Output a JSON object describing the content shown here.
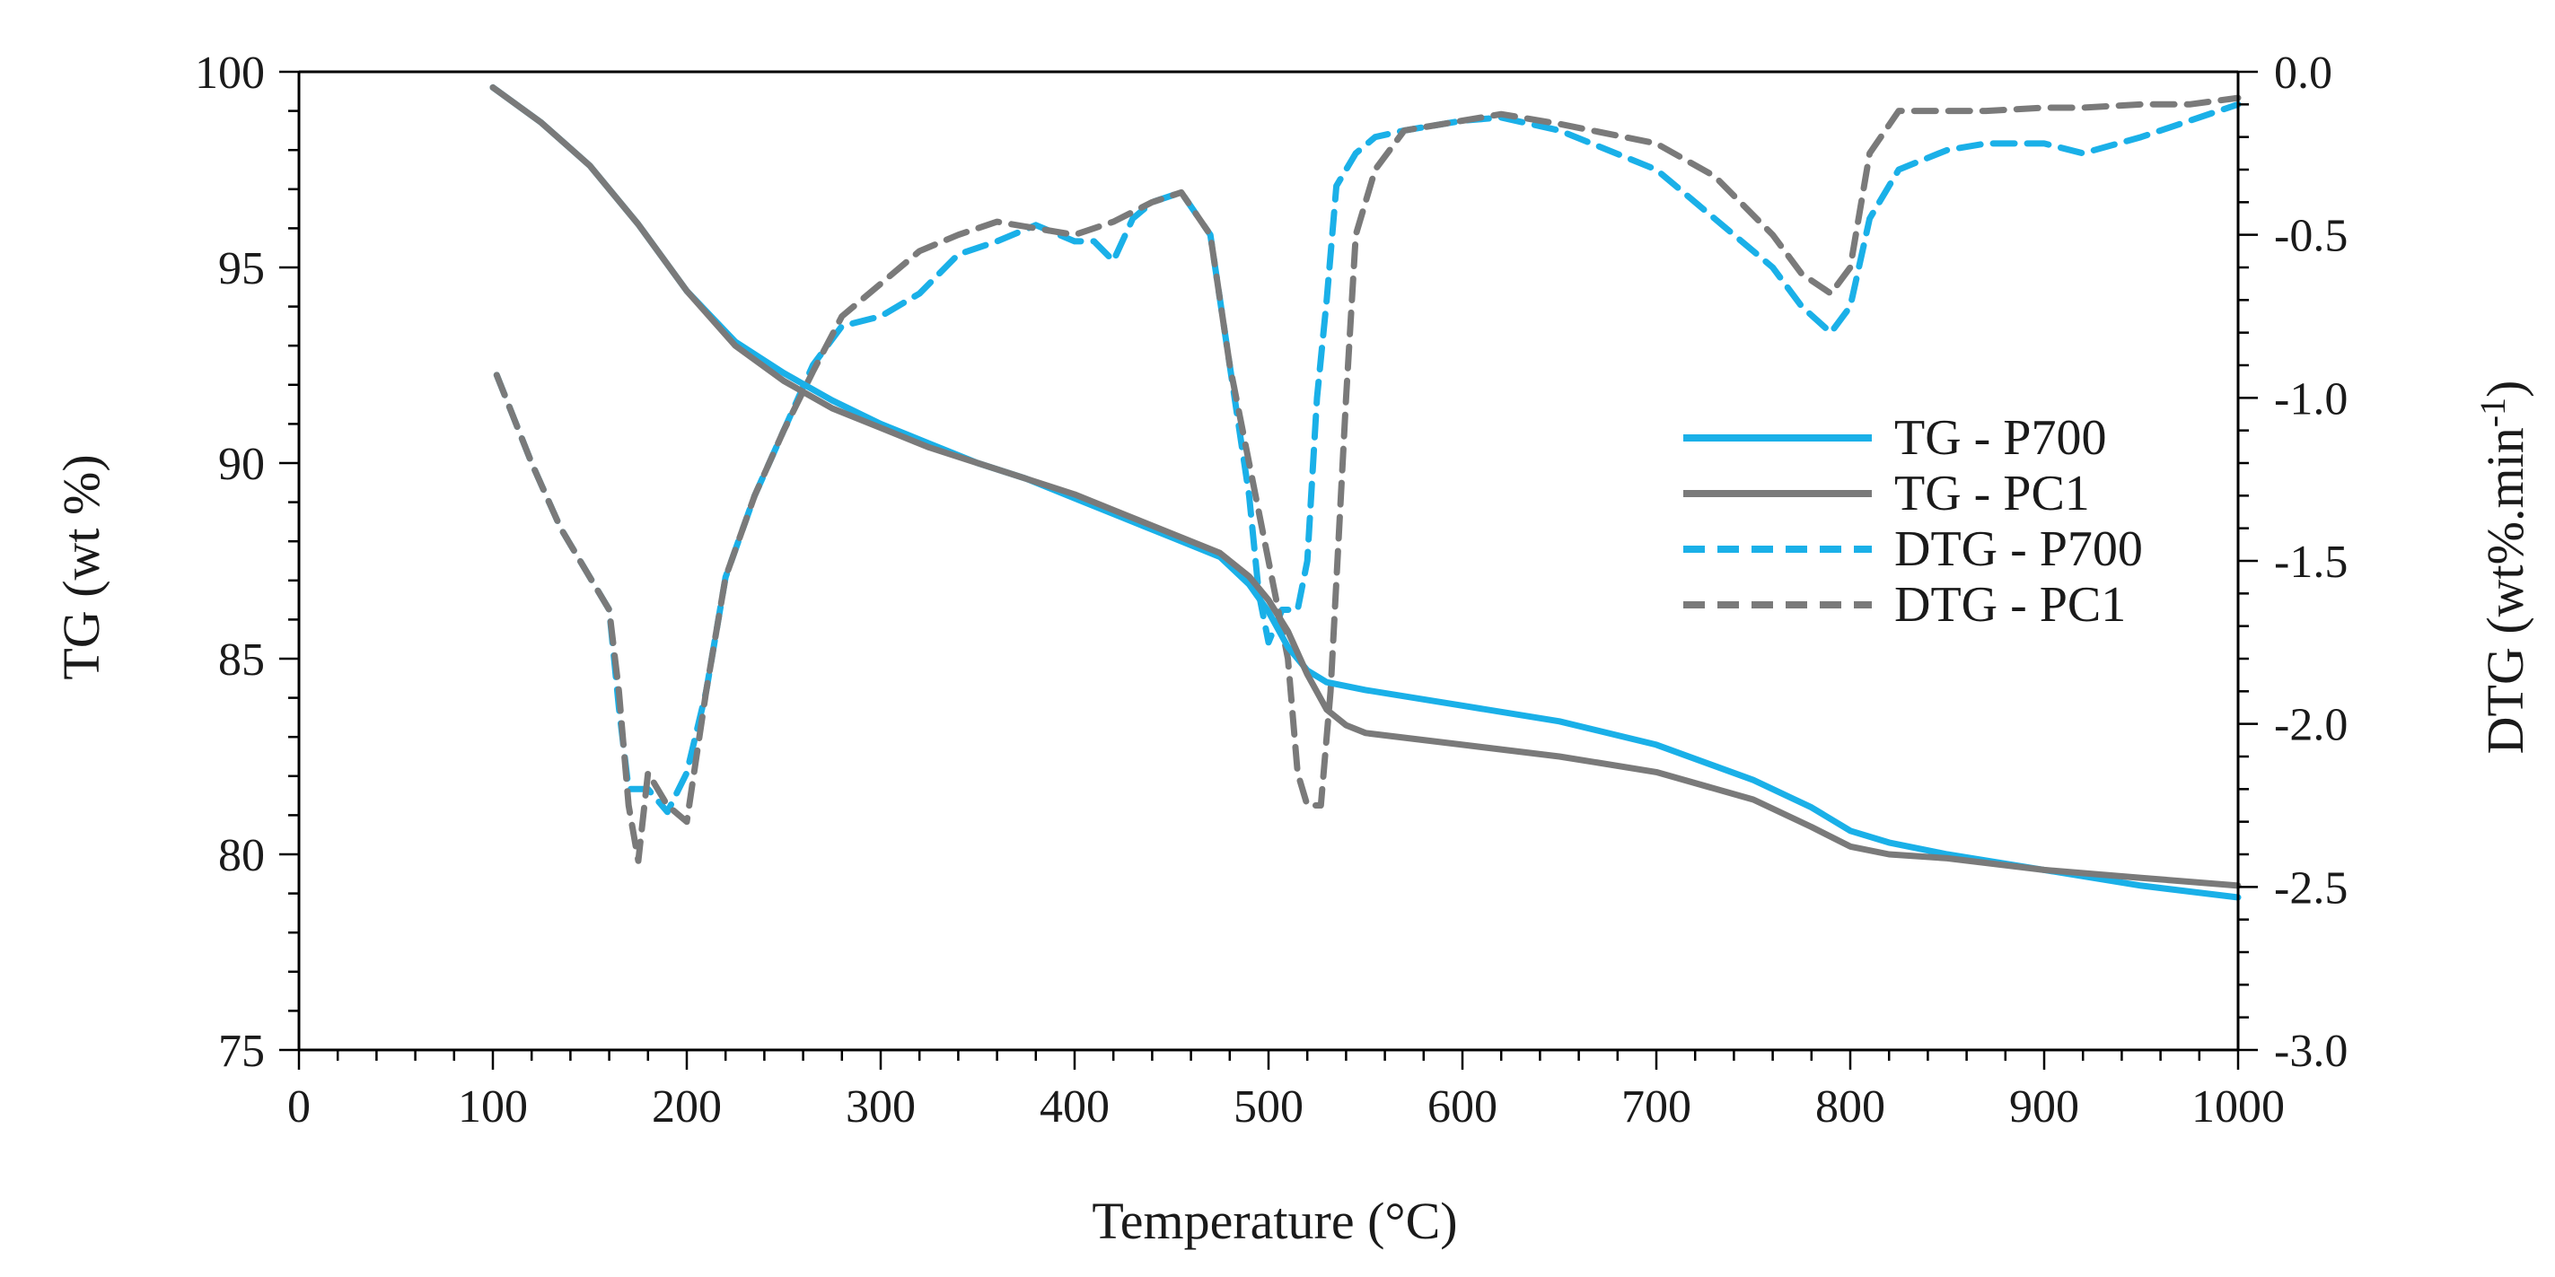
{
  "chart_data": {
    "type": "line",
    "title": "",
    "xlabel": "Temperature (°C)",
    "ylabel_left": "TG (wt %)",
    "ylabel_right": "DTG (wt%.min",
    "ylabel_right_superscript": "-1",
    "ylabel_right_suffix": ")",
    "xlim": [
      0,
      1000
    ],
    "ylim_left": [
      75,
      100
    ],
    "ylim_right": [
      -3.0,
      0.0
    ],
    "x_ticks": [
      "0",
      "100",
      "200",
      "300",
      "400",
      "500",
      "600",
      "700",
      "800",
      "900",
      "1000"
    ],
    "y_left_ticks": [
      "75",
      "80",
      "85",
      "90",
      "95",
      "100"
    ],
    "y_right_ticks": [
      "-3.0",
      "-2.5",
      "-2.0",
      "-1.5",
      "-1.0",
      "-0.5",
      "0.0"
    ],
    "legend_position": "center-right",
    "series": [
      {
        "name": "TG - P700",
        "axis": "left",
        "style": "solid",
        "color": "#1ab0e8",
        "points": [
          [
            100,
            99.6
          ],
          [
            125,
            98.7
          ],
          [
            150,
            97.6
          ],
          [
            175,
            96.1
          ],
          [
            200,
            94.4
          ],
          [
            225,
            93.1
          ],
          [
            250,
            92.3
          ],
          [
            275,
            91.6
          ],
          [
            300,
            91.0
          ],
          [
            325,
            90.5
          ],
          [
            350,
            90.0
          ],
          [
            375,
            89.6
          ],
          [
            400,
            89.1
          ],
          [
            425,
            88.6
          ],
          [
            450,
            88.1
          ],
          [
            475,
            87.6
          ],
          [
            490,
            86.9
          ],
          [
            500,
            86.2
          ],
          [
            510,
            85.3
          ],
          [
            520,
            84.7
          ],
          [
            530,
            84.4
          ],
          [
            550,
            84.2
          ],
          [
            600,
            83.8
          ],
          [
            650,
            83.4
          ],
          [
            700,
            82.8
          ],
          [
            750,
            81.9
          ],
          [
            780,
            81.2
          ],
          [
            800,
            80.6
          ],
          [
            820,
            80.3
          ],
          [
            850,
            80.0
          ],
          [
            900,
            79.6
          ],
          [
            950,
            79.2
          ],
          [
            1000,
            78.9
          ]
        ]
      },
      {
        "name": "TG - PC1",
        "axis": "left",
        "style": "solid",
        "color": "#7a7a7a",
        "points": [
          [
            100,
            99.6
          ],
          [
            125,
            98.7
          ],
          [
            150,
            97.6
          ],
          [
            175,
            96.1
          ],
          [
            200,
            94.4
          ],
          [
            225,
            93.0
          ],
          [
            250,
            92.1
          ],
          [
            275,
            91.4
          ],
          [
            300,
            90.9
          ],
          [
            325,
            90.4
          ],
          [
            350,
            90.0
          ],
          [
            375,
            89.6
          ],
          [
            400,
            89.2
          ],
          [
            425,
            88.7
          ],
          [
            450,
            88.2
          ],
          [
            475,
            87.7
          ],
          [
            490,
            87.1
          ],
          [
            500,
            86.5
          ],
          [
            510,
            85.7
          ],
          [
            520,
            84.6
          ],
          [
            530,
            83.7
          ],
          [
            540,
            83.3
          ],
          [
            550,
            83.1
          ],
          [
            600,
            82.8
          ],
          [
            650,
            82.5
          ],
          [
            700,
            82.1
          ],
          [
            750,
            81.4
          ],
          [
            780,
            80.7
          ],
          [
            800,
            80.2
          ],
          [
            820,
            80.0
          ],
          [
            850,
            79.9
          ],
          [
            900,
            79.6
          ],
          [
            950,
            79.4
          ],
          [
            1000,
            79.2
          ]
        ]
      },
      {
        "name": "DTG - P700",
        "axis": "right",
        "style": "dashed",
        "color": "#1ab0e8",
        "points": [
          [
            102,
            -0.93
          ],
          [
            110,
            -1.05
          ],
          [
            120,
            -1.2
          ],
          [
            135,
            -1.4
          ],
          [
            150,
            -1.55
          ],
          [
            160,
            -1.65
          ],
          [
            165,
            -1.95
          ],
          [
            170,
            -2.2
          ],
          [
            180,
            -2.2
          ],
          [
            190,
            -2.27
          ],
          [
            200,
            -2.15
          ],
          [
            210,
            -1.9
          ],
          [
            220,
            -1.55
          ],
          [
            235,
            -1.3
          ],
          [
            250,
            -1.1
          ],
          [
            265,
            -0.9
          ],
          [
            280,
            -0.78
          ],
          [
            300,
            -0.75
          ],
          [
            320,
            -0.68
          ],
          [
            340,
            -0.56
          ],
          [
            360,
            -0.52
          ],
          [
            380,
            -0.47
          ],
          [
            400,
            -0.52
          ],
          [
            410,
            -0.52
          ],
          [
            420,
            -0.58
          ],
          [
            430,
            -0.45
          ],
          [
            440,
            -0.4
          ],
          [
            455,
            -0.37
          ],
          [
            470,
            -0.5
          ],
          [
            480,
            -0.9
          ],
          [
            490,
            -1.3
          ],
          [
            495,
            -1.6
          ],
          [
            500,
            -1.75
          ],
          [
            507,
            -1.65
          ],
          [
            515,
            -1.65
          ],
          [
            520,
            -1.5
          ],
          [
            525,
            -1.0
          ],
          [
            530,
            -0.7
          ],
          [
            535,
            -0.35
          ],
          [
            545,
            -0.25
          ],
          [
            555,
            -0.2
          ],
          [
            570,
            -0.18
          ],
          [
            600,
            -0.15
          ],
          [
            620,
            -0.14
          ],
          [
            650,
            -0.18
          ],
          [
            700,
            -0.3
          ],
          [
            730,
            -0.45
          ],
          [
            760,
            -0.6
          ],
          [
            775,
            -0.72
          ],
          [
            790,
            -0.8
          ],
          [
            800,
            -0.72
          ],
          [
            810,
            -0.45
          ],
          [
            825,
            -0.3
          ],
          [
            850,
            -0.24
          ],
          [
            870,
            -0.22
          ],
          [
            900,
            -0.22
          ],
          [
            920,
            -0.25
          ],
          [
            950,
            -0.2
          ],
          [
            975,
            -0.15
          ],
          [
            1000,
            -0.1
          ]
        ]
      },
      {
        "name": "DTG - PC1",
        "axis": "right",
        "style": "dashed",
        "color": "#7a7a7a",
        "points": [
          [
            102,
            -0.93
          ],
          [
            110,
            -1.05
          ],
          [
            120,
            -1.2
          ],
          [
            135,
            -1.4
          ],
          [
            150,
            -1.55
          ],
          [
            160,
            -1.65
          ],
          [
            165,
            -1.9
          ],
          [
            170,
            -2.25
          ],
          [
            175,
            -2.42
          ],
          [
            180,
            -2.15
          ],
          [
            190,
            -2.25
          ],
          [
            200,
            -2.3
          ],
          [
            210,
            -1.9
          ],
          [
            220,
            -1.55
          ],
          [
            235,
            -1.3
          ],
          [
            250,
            -1.1
          ],
          [
            265,
            -0.92
          ],
          [
            280,
            -0.75
          ],
          [
            300,
            -0.65
          ],
          [
            320,
            -0.55
          ],
          [
            340,
            -0.5
          ],
          [
            360,
            -0.46
          ],
          [
            380,
            -0.48
          ],
          [
            400,
            -0.5
          ],
          [
            420,
            -0.46
          ],
          [
            440,
            -0.4
          ],
          [
            455,
            -0.37
          ],
          [
            470,
            -0.5
          ],
          [
            480,
            -0.9
          ],
          [
            490,
            -1.2
          ],
          [
            500,
            -1.5
          ],
          [
            510,
            -1.8
          ],
          [
            515,
            -2.15
          ],
          [
            520,
            -2.25
          ],
          [
            527,
            -2.25
          ],
          [
            532,
            -1.9
          ],
          [
            540,
            -1.0
          ],
          [
            545,
            -0.5
          ],
          [
            555,
            -0.3
          ],
          [
            570,
            -0.18
          ],
          [
            600,
            -0.15
          ],
          [
            620,
            -0.13
          ],
          [
            650,
            -0.16
          ],
          [
            700,
            -0.22
          ],
          [
            730,
            -0.32
          ],
          [
            760,
            -0.5
          ],
          [
            775,
            -0.62
          ],
          [
            790,
            -0.68
          ],
          [
            800,
            -0.6
          ],
          [
            810,
            -0.25
          ],
          [
            825,
            -0.12
          ],
          [
            850,
            -0.12
          ],
          [
            870,
            -0.12
          ],
          [
            900,
            -0.11
          ],
          [
            920,
            -0.11
          ],
          [
            950,
            -0.1
          ],
          [
            975,
            -0.1
          ],
          [
            1000,
            -0.08
          ]
        ]
      }
    ]
  }
}
